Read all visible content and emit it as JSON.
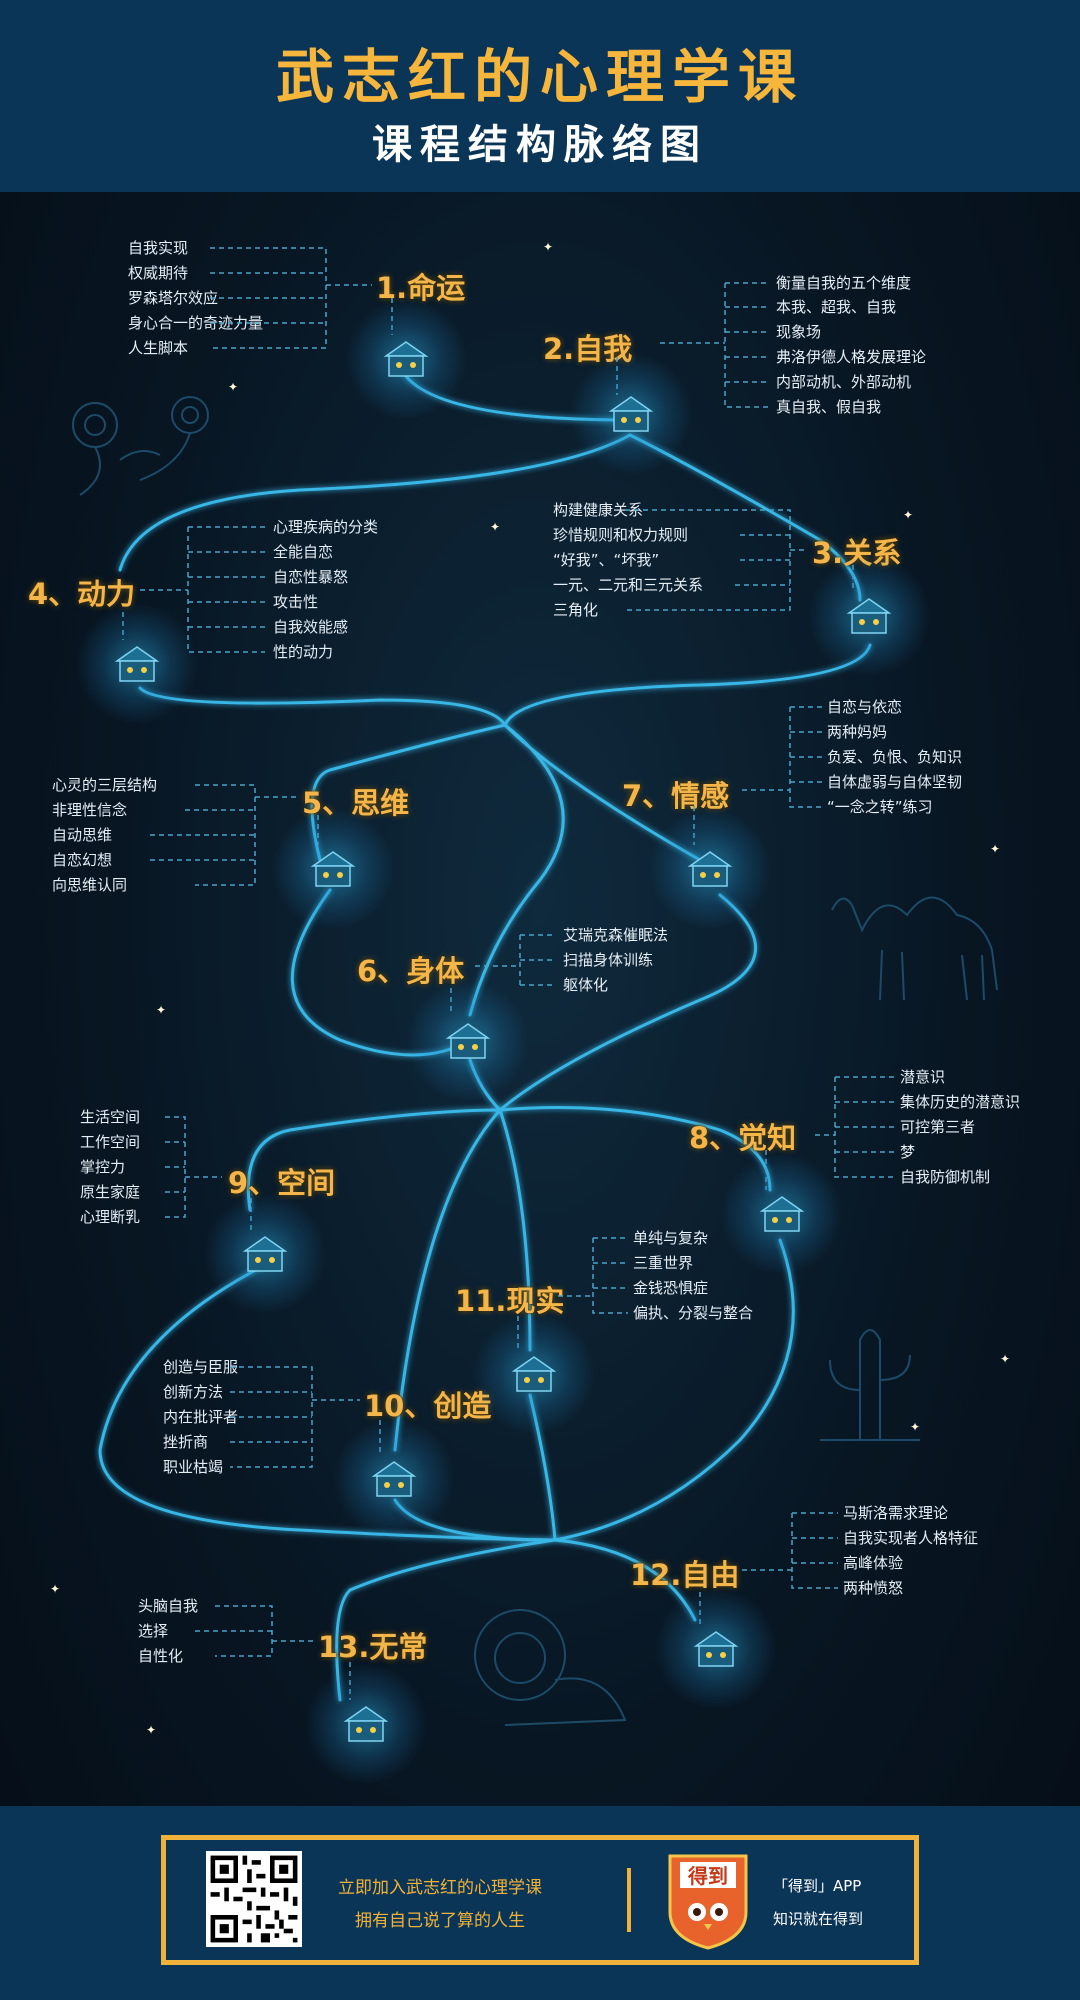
{
  "header": {
    "title": "武志红的心理学课",
    "subtitle": "课程结构脉络图"
  },
  "nodes": [
    {
      "title": "1.命运",
      "topics": [
        "自我实现",
        "权威期待",
        "罗森塔尔效应",
        "身心合一的奇迹力量",
        "人生脚本"
      ]
    },
    {
      "title": "2.自我",
      "topics": [
        "衡量自我的五个维度",
        "本我、超我、自我",
        "现象场",
        "弗洛伊德人格发展理论",
        "内部动机、外部动机",
        "真自我、假自我"
      ]
    },
    {
      "title": "3.关系",
      "topics": [
        "构建健康关系",
        "珍惜规则和权力规则",
        "“好我”、“坏我”",
        "一元、二元和三元关系",
        "三角化"
      ]
    },
    {
      "title": "4、动力",
      "topics": [
        "心理疾病的分类",
        "全能自恋",
        "自恋性暴怒",
        "攻击性",
        "自我效能感",
        "性的动力"
      ]
    },
    {
      "title": "5、思维",
      "topics": [
        "心灵的三层结构",
        "非理性信念",
        "自动思维",
        "自恋幻想",
        "向思维认同"
      ]
    },
    {
      "title": "6、身体",
      "topics": [
        "艾瑞克森催眠法",
        "扫描身体训练",
        "躯体化"
      ]
    },
    {
      "title": "7、情感",
      "topics": [
        "自恋与依恋",
        "两种妈妈",
        "负爱、负恨、负知识",
        "自体虚弱与自体坚韧",
        "“一念之转”练习"
      ]
    },
    {
      "title": "8、觉知",
      "topics": [
        "潜意识",
        "集体历史的潜意识",
        "可控第三者",
        "梦",
        "自我防御机制"
      ]
    },
    {
      "title": "9、空间",
      "topics": [
        "生活空间",
        "工作空间",
        "掌控力",
        "原生家庭",
        "心理断乳"
      ]
    },
    {
      "title": "10、创造",
      "topics": [
        "创造与臣服",
        "创新方法",
        "内在批评者",
        "挫折商",
        "职业枯竭"
      ]
    },
    {
      "title": "11.现实",
      "topics": [
        "单纯与复杂",
        "三重世界",
        "金钱恐惧症",
        "偏执、分裂与整合"
      ]
    },
    {
      "title": "12.自由",
      "topics": [
        "马斯洛需求理论",
        "自我实现者人格特征",
        "高峰体验",
        "两种愤怒"
      ]
    },
    {
      "title": "13.无常",
      "topics": [
        "头脑自我",
        "选择",
        "自性化"
      ]
    }
  ],
  "footer": {
    "cta_line1": "立即加入武志红的心理学课",
    "cta_line2": "拥有自己说了算的人生",
    "logo_text": "得到",
    "app_line1": "「得到」APP",
    "app_line2": "知识就在得到"
  },
  "colors": {
    "header_bg": "#0b3557",
    "title_gold": "#f6b53b",
    "path_glow": "#38b6e6",
    "logo_orange": "#e8632b"
  }
}
